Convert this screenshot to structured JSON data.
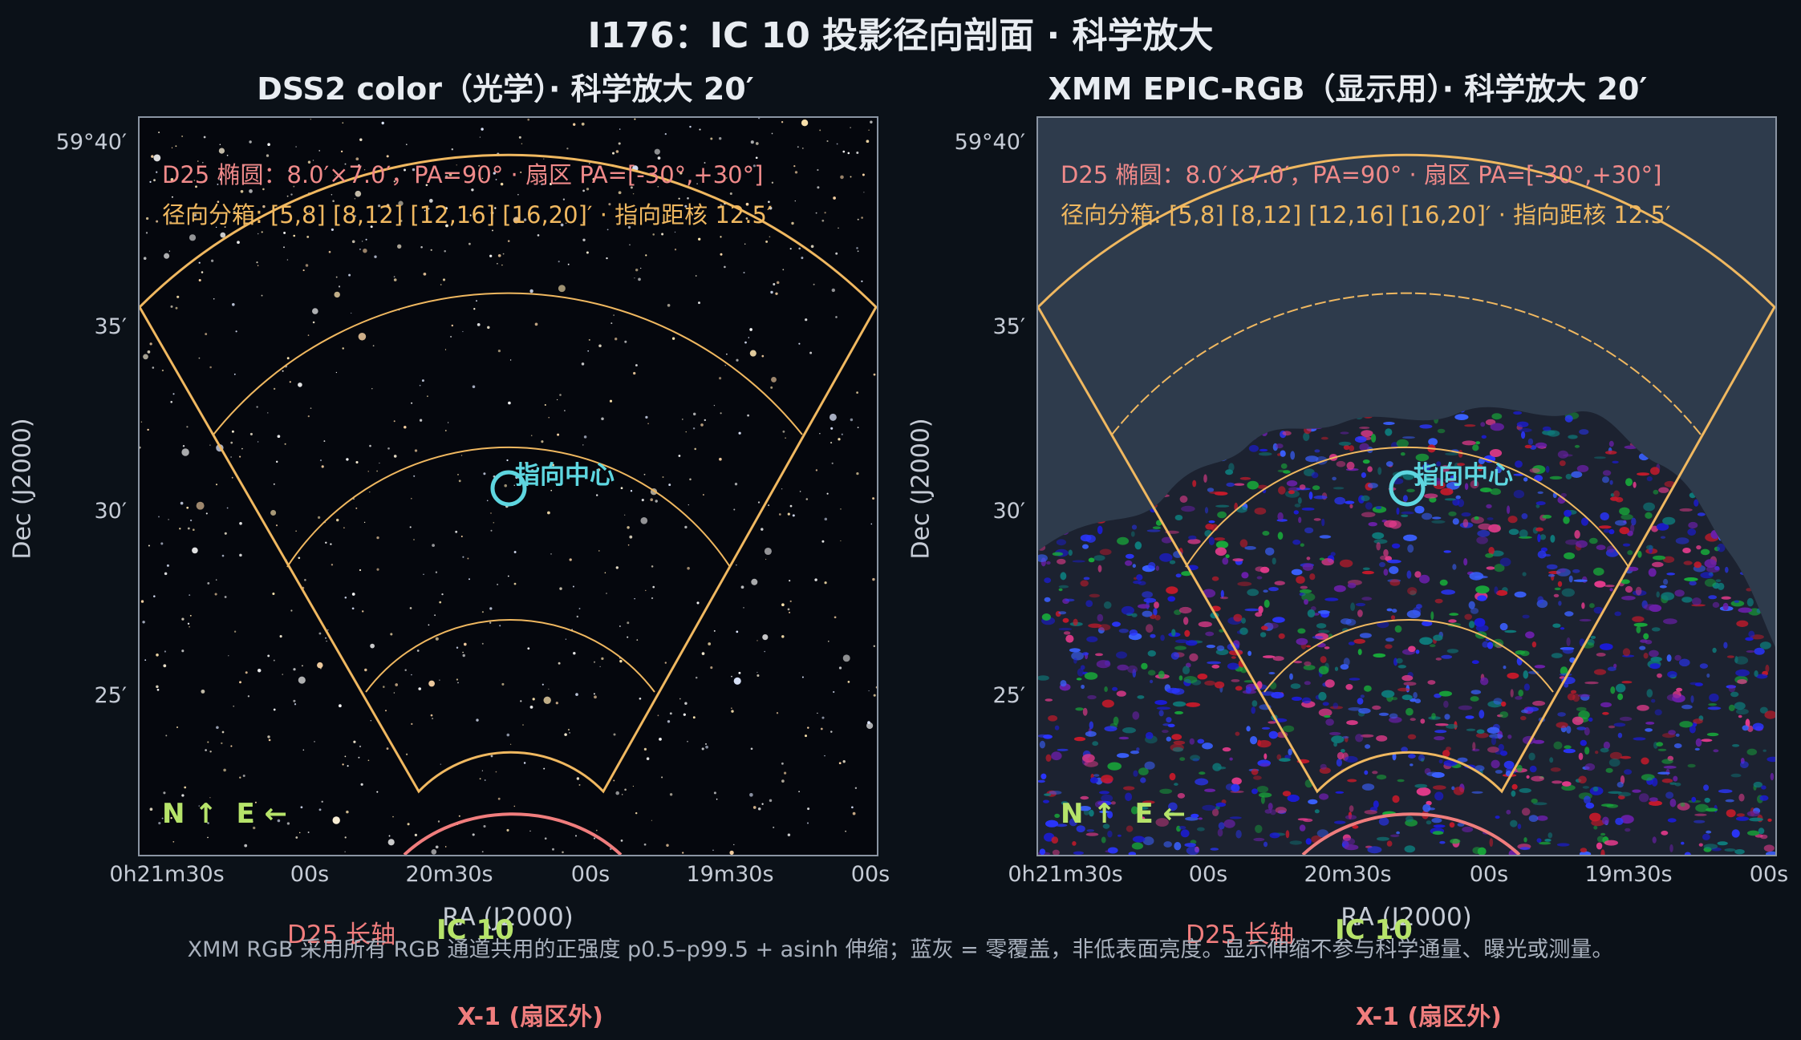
{
  "title": "I176：IC 10 投影径向剖面 · 科学放大",
  "panels": [
    {
      "title": "DSS2 color（光学）· 科学放大 20′",
      "info_line1": "D25 椭圆：8.0′×7.0′，PA=90° · 扇区 PA=[-30°,+30°]",
      "info_line2": "径向分箱: [5,8] [8,12] [12,16] [16,20]′ · 指向距核 12.5′",
      "pointing_label": "指向中心",
      "compass": "N ↑  E ←",
      "d25_label": "D25 长轴",
      "ic10_label": "IC 10",
      "x1_label": "X-1 (扇区外)"
    },
    {
      "title": "XMM EPIC-RGB（显示用）· 科学放大 20′",
      "info_line1": "D25 椭圆：8.0′×7.0′，PA=90° · 扇区 PA=[-30°,+30°]",
      "info_line2": "径向分箱: [5,8] [8,12] [12,16] [16,20]′ · 指向距核 12.5′",
      "pointing_label": "指向中心",
      "compass": "N ↑  E ←",
      "d25_label": "D25 长轴",
      "ic10_label": "IC 10",
      "x1_label": "X-1 (扇区外)"
    }
  ],
  "axes": {
    "ylabel": "Dec (J2000)",
    "xlabel": "RA (J2000)",
    "yticks": [
      "59°40′",
      "35′",
      "30′",
      "25′"
    ],
    "xticks": [
      "0h21m30s",
      "00s",
      "20m30s",
      "00s",
      "19m30s",
      "00s"
    ]
  },
  "footnote": "XMM RGB 采用所有 RGB 通道共用的正强度 p0.5–p99.5 + asinh 伸缩；蓝灰 = 零覆盖，非低表面亮度。显示伸缩不参与科学通量、曝光或测量。",
  "colors": {
    "background": "#0b1118",
    "sector": "#f0b860",
    "d25": "#f07d7d",
    "pointing": "#5ed6e0",
    "ic10": "#b6e36a",
    "xmm_zero_coverage": "#2e3b4c"
  }
}
